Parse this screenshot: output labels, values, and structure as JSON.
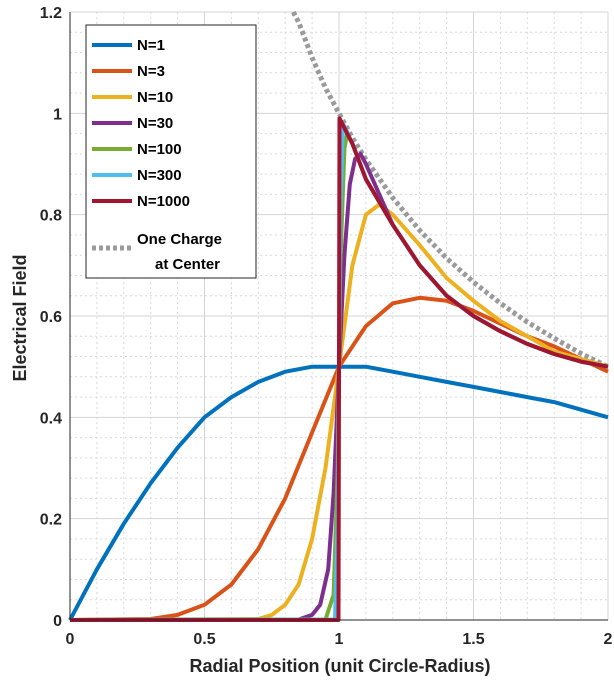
{
  "chart_data": {
    "type": "line",
    "xlabel": "Radial Position (unit Circle-Radius)",
    "ylabel": "Electrical Field",
    "xlim": [
      0,
      2
    ],
    "ylim": [
      0,
      1.2
    ],
    "x_ticks": [
      "0",
      "0.5",
      "1",
      "1.5",
      "2"
    ],
    "y_ticks": [
      "0",
      "0.2",
      "0.4",
      "0.6",
      "0.8",
      "1",
      "1.2"
    ],
    "grid": "major and minor, dashed",
    "legend_position": "top-left",
    "legend": {
      "labels": [
        "N=1",
        "N=3",
        "N=10",
        "N=30",
        "N=100",
        "N=300",
        "N=1000"
      ],
      "reference_label_line1": "One Charge",
      "reference_label_line2": "at Center"
    },
    "series": [
      {
        "name": "N=1",
        "color": "#0072BD",
        "x": [
          0,
          0.1,
          0.2,
          0.3,
          0.4,
          0.5,
          0.6,
          0.7,
          0.8,
          0.9,
          1.0,
          1.1,
          1.2,
          1.3,
          1.4,
          1.5,
          1.6,
          1.7,
          1.8,
          1.9,
          2.0
        ],
        "y": [
          0,
          0.1,
          0.19,
          0.27,
          0.34,
          0.4,
          0.44,
          0.47,
          0.49,
          0.5,
          0.5,
          0.5,
          0.49,
          0.48,
          0.47,
          0.46,
          0.45,
          0.44,
          0.43,
          0.415,
          0.4
        ]
      },
      {
        "name": "N=3",
        "color": "#D95319",
        "x": [
          0,
          0.3,
          0.4,
          0.5,
          0.6,
          0.7,
          0.8,
          0.9,
          1.0,
          1.1,
          1.2,
          1.3,
          1.4,
          1.5,
          1.6,
          1.7,
          1.8,
          1.9,
          2.0
        ],
        "y": [
          0,
          0.002,
          0.01,
          0.03,
          0.07,
          0.14,
          0.24,
          0.37,
          0.5,
          0.58,
          0.625,
          0.636,
          0.63,
          0.61,
          0.585,
          0.56,
          0.54,
          0.515,
          0.49
        ]
      },
      {
        "name": "N=10",
        "color": "#EDB120",
        "x": [
          0,
          0.7,
          0.75,
          0.8,
          0.85,
          0.9,
          0.95,
          1.0,
          1.05,
          1.1,
          1.15,
          1.2,
          1.3,
          1.4,
          1.5,
          1.6,
          1.7,
          1.8,
          1.9,
          2.0
        ],
        "y": [
          0,
          0.002,
          0.01,
          0.03,
          0.07,
          0.16,
          0.3,
          0.5,
          0.7,
          0.8,
          0.82,
          0.8,
          0.74,
          0.675,
          0.63,
          0.59,
          0.56,
          0.53,
          0.515,
          0.5
        ]
      },
      {
        "name": "N=30",
        "color": "#7E2F8E",
        "x": [
          0,
          0.85,
          0.9,
          0.93,
          0.96,
          0.98,
          1.0,
          1.02,
          1.04,
          1.06,
          1.08,
          1.1,
          1.15,
          1.2,
          1.3,
          1.4,
          1.5,
          1.6,
          1.7,
          1.8,
          1.9,
          2.0
        ],
        "y": [
          0,
          0.001,
          0.01,
          0.03,
          0.1,
          0.25,
          0.5,
          0.72,
          0.86,
          0.91,
          0.92,
          0.9,
          0.84,
          0.78,
          0.7,
          0.64,
          0.6,
          0.57,
          0.545,
          0.525,
          0.51,
          0.5
        ]
      },
      {
        "name": "N=100",
        "color": "#77AC30",
        "x": [
          0,
          0.95,
          0.98,
          0.995,
          1.0,
          1.005,
          1.02,
          1.03,
          1.05,
          1.1,
          1.2,
          1.3,
          1.4,
          1.5,
          1.6,
          1.7,
          1.8,
          1.9,
          2.0
        ],
        "y": [
          0,
          0.001,
          0.05,
          0.3,
          0.5,
          0.7,
          0.93,
          0.96,
          0.94,
          0.87,
          0.78,
          0.7,
          0.64,
          0.6,
          0.57,
          0.545,
          0.525,
          0.51,
          0.5
        ]
      },
      {
        "name": "N=300",
        "color": "#4DBEEE",
        "x": [
          0,
          0.985,
          0.995,
          1.0,
          1.005,
          1.015,
          1.05,
          1.1,
          1.2,
          1.3,
          1.4,
          1.5,
          1.6,
          1.7,
          1.8,
          1.9,
          2.0
        ],
        "y": [
          0,
          0.001,
          0.2,
          0.5,
          0.8,
          0.98,
          0.94,
          0.87,
          0.78,
          0.7,
          0.64,
          0.6,
          0.57,
          0.545,
          0.525,
          0.51,
          0.5
        ]
      },
      {
        "name": "N=1000",
        "color": "#A2142F",
        "x": [
          0,
          0.998,
          1.0,
          1.002,
          1.05,
          1.1,
          1.2,
          1.3,
          1.4,
          1.5,
          1.6,
          1.7,
          1.8,
          1.9,
          2.0
        ],
        "y": [
          0,
          0,
          0.5,
          0.99,
          0.94,
          0.87,
          0.78,
          0.7,
          0.64,
          0.6,
          0.57,
          0.545,
          0.525,
          0.51,
          0.5
        ]
      },
      {
        "name": "One Charge at Center",
        "color": "#9a9a9a",
        "dashed": true,
        "x": [
          0.83,
          0.85,
          0.9,
          0.95,
          1.0,
          1.05,
          1.1,
          1.2,
          1.3,
          1.4,
          1.5,
          1.6,
          1.7,
          1.8,
          1.9,
          2.0
        ],
        "y": [
          1.2,
          1.18,
          1.11,
          1.05,
          1.0,
          0.952,
          0.909,
          0.833,
          0.769,
          0.714,
          0.667,
          0.625,
          0.588,
          0.556,
          0.526,
          0.5
        ]
      }
    ]
  }
}
